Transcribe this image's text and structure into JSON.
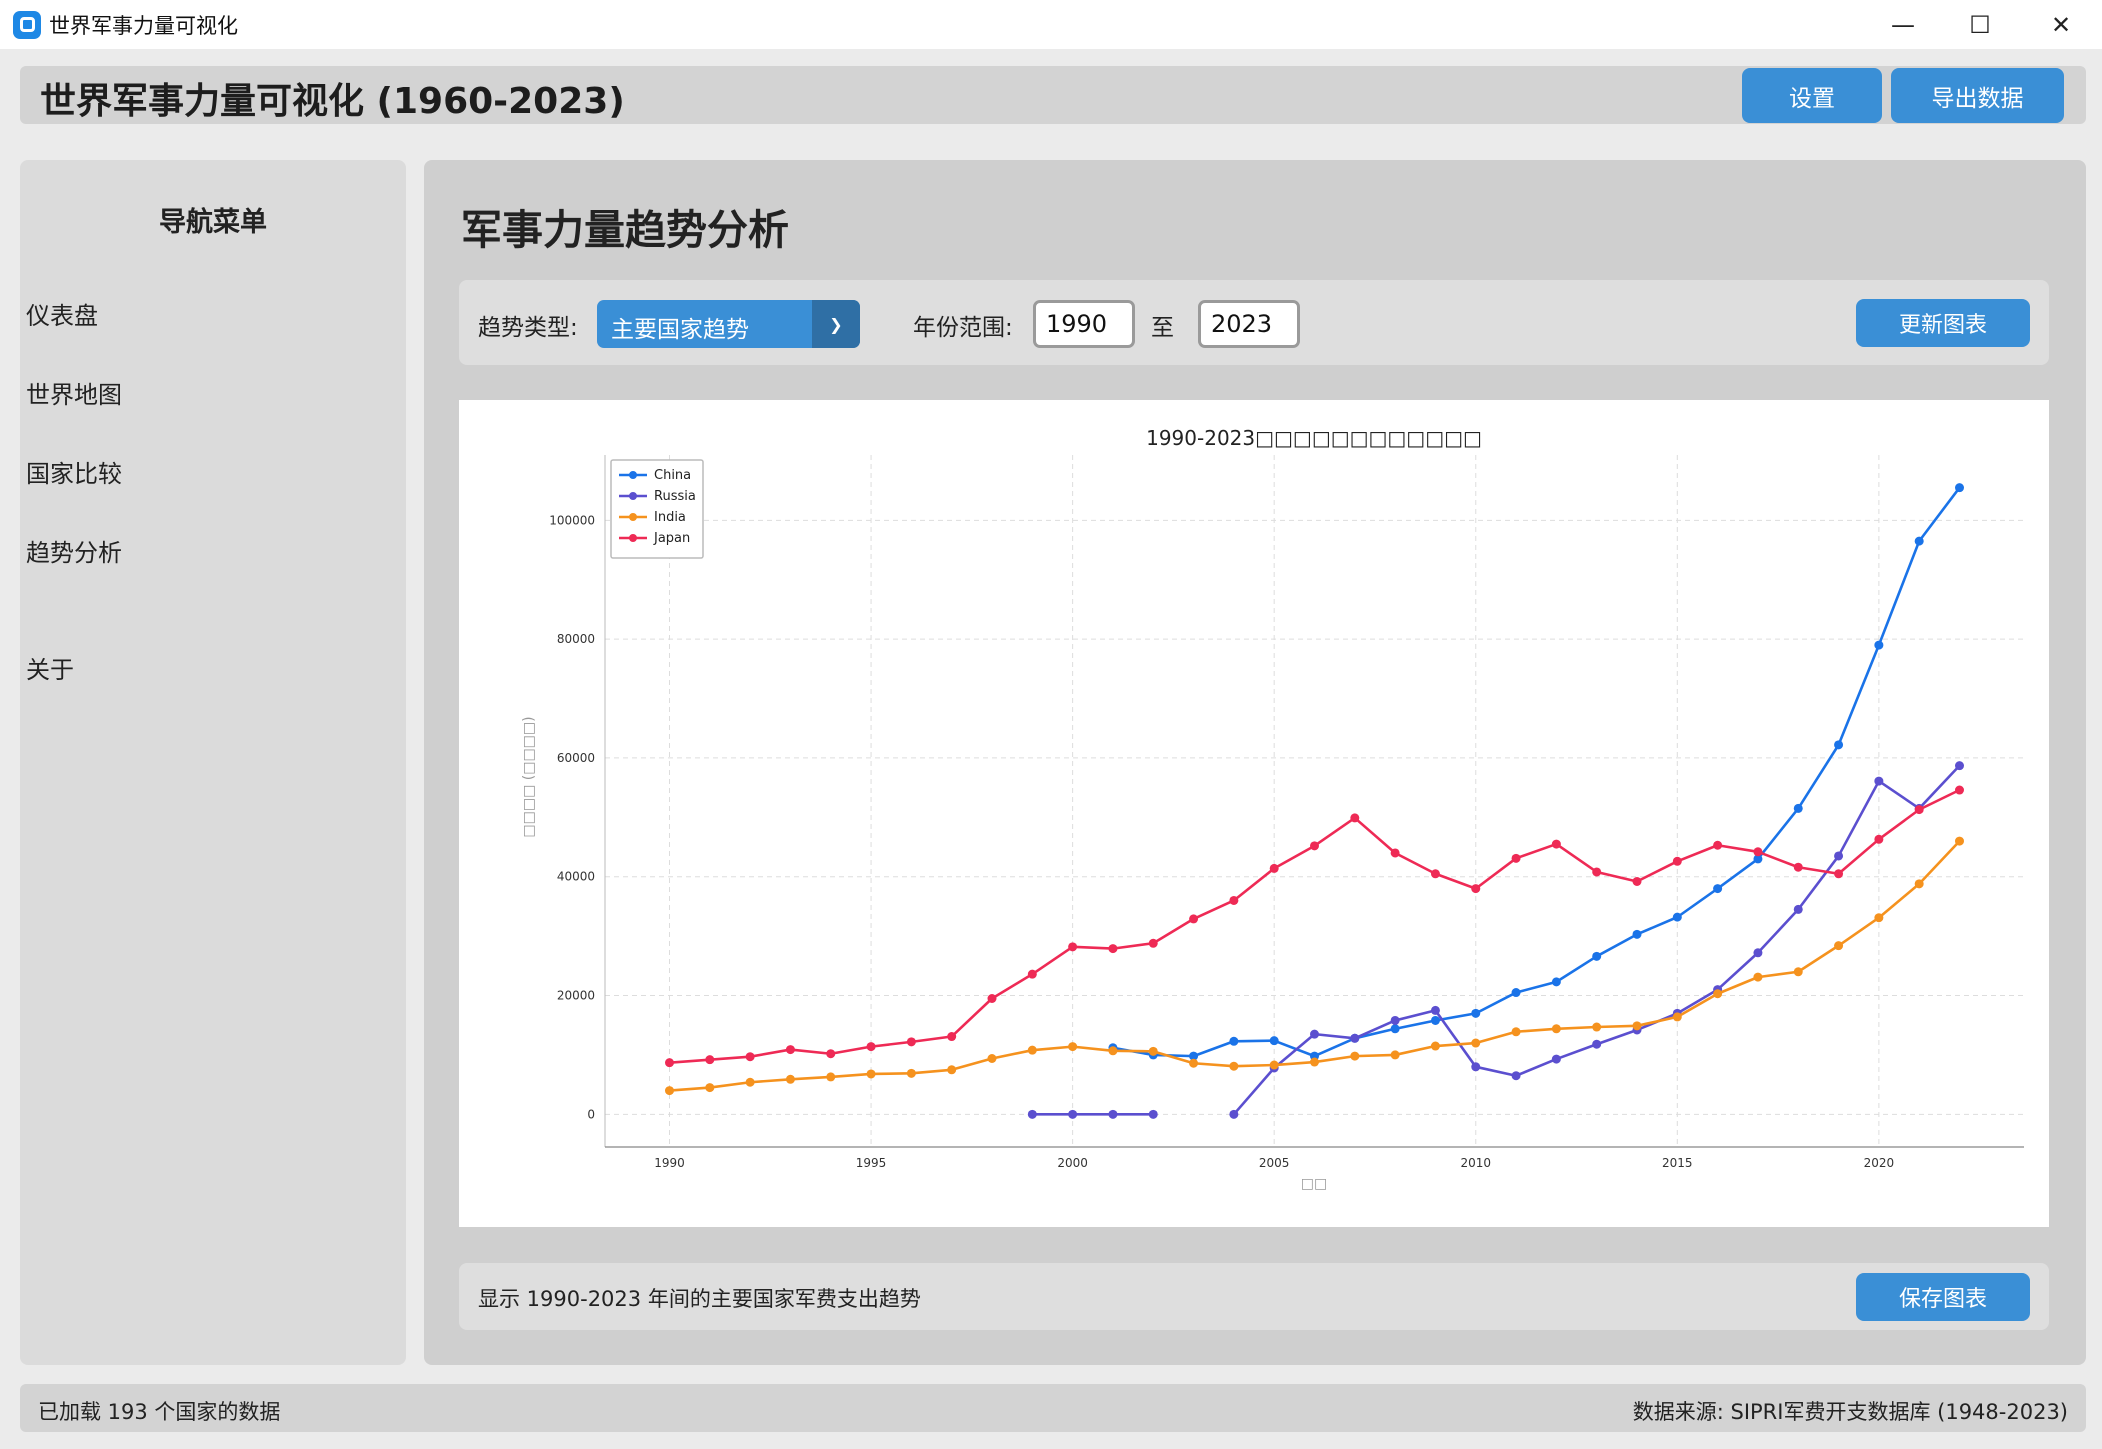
{
  "window": {
    "title": "世界军事力量可视化",
    "controls": {
      "minimize": "—",
      "maximize": "☐",
      "close": "✕"
    }
  },
  "header": {
    "title": "世界军事力量可视化 (1960-2023)",
    "settings_label": "设置",
    "export_label": "导出数据"
  },
  "sidebar": {
    "title": "导航菜单",
    "items": [
      {
        "label": "仪表盘"
      },
      {
        "label": "世界地图"
      },
      {
        "label": "国家比较"
      },
      {
        "label": "趋势分析"
      },
      {
        "label": "关于"
      }
    ]
  },
  "main": {
    "title": "军事力量趋势分析",
    "controls": {
      "trend_type_label": "趋势类型:",
      "trend_type_value": "主要国家趋势",
      "year_range_label": "年份范围:",
      "year_from": "1990",
      "to_label": "至",
      "year_to": "2023",
      "update_label": "更新图表"
    },
    "footer_text": "显示 1990-2023 年间的主要国家军费支出趋势",
    "save_label": "保存图表"
  },
  "status": {
    "left": "已加载 193 个国家的数据",
    "right": "数据来源: SIPRI军费开支数据库 (1948-2023)"
  },
  "colors": {
    "accent": "#3a8fd6",
    "China": "#1a73e8",
    "Russia": "#5b4fcf",
    "India": "#f5921e",
    "Japan": "#ee2a55"
  },
  "chart_data": {
    "type": "line",
    "title": "1990-2023□□□□□□□□□□□□",
    "xlabel": "□□",
    "ylabel": "□□□□ (□□□□)",
    "xlim": [
      1988.4,
      2023.6
    ],
    "ylim": [
      -5500,
      111000
    ],
    "xticks": [
      1990,
      1995,
      2000,
      2005,
      2010,
      2015,
      2020
    ],
    "yticks": [
      0,
      20000,
      40000,
      60000,
      80000,
      100000
    ],
    "grid": true,
    "legend": "top-left",
    "series": [
      {
        "name": "China",
        "segments": [
          {
            "x": [
              2001,
              2002,
              2003,
              2004,
              2005,
              2006,
              2007,
              2008,
              2009,
              2010,
              2011,
              2012,
              2013,
              2014,
              2015,
              2016,
              2017,
              2018,
              2019,
              2020,
              2021,
              2022
            ],
            "y": [
              11200,
              10000,
              9800,
              12300,
              12400,
              9800,
              12800,
              14400,
              15800,
              17000,
              20500,
              22300,
              26600,
              30300,
              33200,
              38000,
              43000,
              51500,
              62200,
              79000,
              96500,
              105500
            ]
          }
        ]
      },
      {
        "name": "Russia",
        "segments": [
          {
            "x": [
              1999,
              2000,
              2001,
              2002
            ],
            "y": [
              0,
              0,
              0,
              0
            ]
          },
          {
            "x": [
              2004,
              2005,
              2006,
              2007,
              2008,
              2009,
              2010,
              2011,
              2012,
              2013,
              2014,
              2015,
              2016,
              2017,
              2018,
              2019,
              2020,
              2021,
              2022
            ],
            "y": [
              0,
              7800,
              13500,
              12800,
              15800,
              17500,
              8000,
              6500,
              9300,
              11800,
              14200,
              17000,
              21000,
              27200,
              34500,
              43500,
              56100,
              51500,
              58700
            ]
          }
        ]
      },
      {
        "name": "India",
        "segments": [
          {
            "x": [
              1990,
              1991,
              1992,
              1993,
              1994,
              1995,
              1996,
              1997,
              1998,
              1999,
              2000,
              2001,
              2002,
              2003,
              2004,
              2005,
              2006,
              2007,
              2008,
              2009,
              2010,
              2011,
              2012,
              2013,
              2014,
              2015,
              2016,
              2017,
              2018,
              2019,
              2020,
              2021,
              2022
            ],
            "y": [
              4000,
              4500,
              5400,
              5900,
              6300,
              6800,
              6900,
              7500,
              9400,
              10800,
              11400,
              10700,
              10600,
              8600,
              8100,
              8300,
              8800,
              9800,
              10000,
              11500,
              12000,
              13900,
              14400,
              14700,
              14900,
              16400,
              20300,
              23100,
              24000,
              28400,
              33100,
              38800,
              46000
            ]
          }
        ]
      },
      {
        "name": "Japan",
        "segments": [
          {
            "x": [
              1990,
              1991,
              1992,
              1993,
              1994,
              1995,
              1996,
              1997,
              1998,
              1999,
              2000,
              2001,
              2002,
              2003,
              2004,
              2005,
              2006,
              2007,
              2008,
              2009,
              2010,
              2011,
              2012,
              2013,
              2014,
              2015,
              2016,
              2017,
              2018,
              2019,
              2020,
              2021,
              2022
            ],
            "y": [
              8700,
              9200,
              9700,
              10900,
              10200,
              11400,
              12200,
              13100,
              19500,
              23600,
              28200,
              27900,
              28800,
              32900,
              36000,
              41400,
              45200,
              49900,
              44000,
              40500,
              38000,
              43100,
              45500,
              40800,
              39200,
              42600,
              45300,
              44200,
              41600,
              40500,
              46300,
              51300,
              54600
            ]
          }
        ]
      }
    ]
  }
}
